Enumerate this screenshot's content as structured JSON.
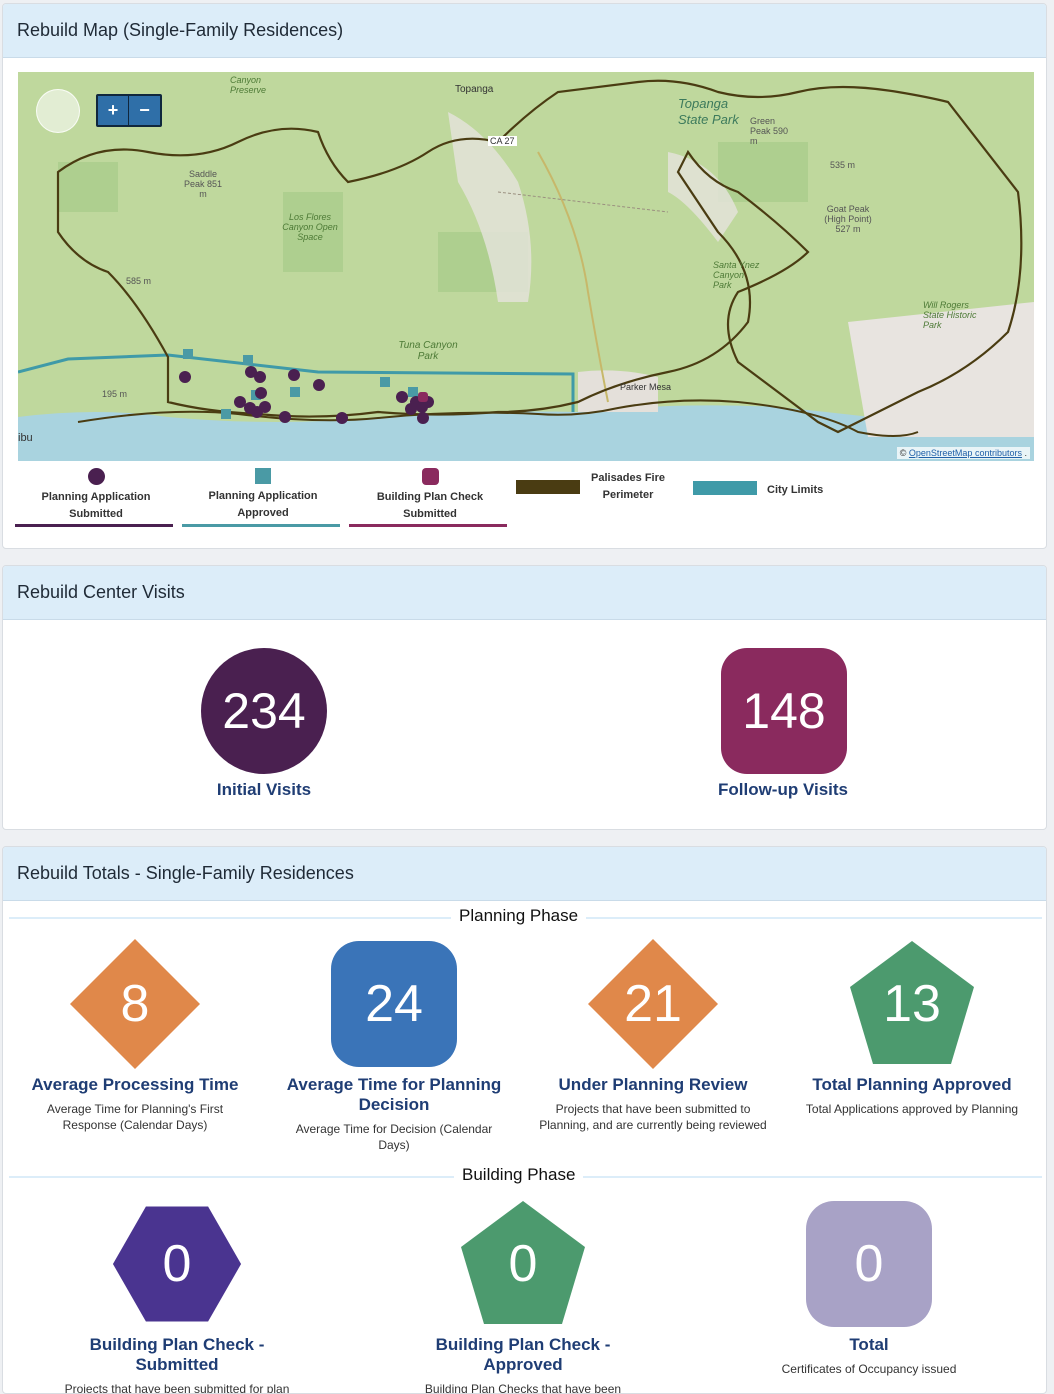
{
  "map_panel": {
    "title": "Rebuild Map (Single-Family Residences)",
    "zoom_in": "+",
    "zoom_out": "−",
    "attribution_symbol": "©",
    "attribution_link": "OpenStreetMap contributors",
    "attribution_suffix": ".",
    "labels": {
      "topanga": "Topanga",
      "topanga_state_park": "Topanga State Park",
      "tuna_canyon": "Tuna Canyon Park",
      "los_flores": "Los Flores Canyon Open Space",
      "saddle_peak": "Saddle Peak 851 m",
      "green_peak": "Green Peak 590 m",
      "goat_peak": "Goat Peak (High Point) 527 m",
      "peak_535": "535 m",
      "peak_585": "585 m",
      "peak_195": "195 m",
      "santa_ynez": "Santa Ynez Canyon Park",
      "will_rogers": "Will Rogers State Historic Park",
      "parker": "Parker Mesa",
      "canyon_preserve": "Canyon Preserve",
      "ca27": "CA 27",
      "malibu_edge": "ibu"
    },
    "legend": [
      {
        "label": "Planning Application Submitted",
        "color": "#4a2050"
      },
      {
        "label": "Planning Application Approved",
        "color": "#4a9aa5"
      },
      {
        "label": "Building Plan Check Submitted",
        "color": "#8a2a5e"
      },
      {
        "label": "Palisades Fire Perimeter",
        "color": "#4a3c12"
      },
      {
        "label": "City Limits",
        "color": "#3f9aa8"
      }
    ]
  },
  "visits_panel": {
    "title": "Rebuild Center Visits",
    "initial": {
      "value": "234",
      "label": "Initial Visits",
      "color": "#4a2050"
    },
    "followup": {
      "value": "148",
      "label": "Follow-up Visits",
      "color": "#8a2a5e"
    }
  },
  "totals_panel": {
    "title": "Rebuild Totals - Single-Family Residences",
    "planning_phase": "Planning Phase",
    "building_phase": "Building Phase",
    "planning": [
      {
        "value": "8",
        "title": "Average Processing Time",
        "desc": "Average Time for Planning's First Response (Calendar Days)",
        "shape": "diamond",
        "color": "#e0884a"
      },
      {
        "value": "24",
        "title": "Average Time for Planning Decision",
        "desc": "Average Time for Decision (Calendar Days)",
        "shape": "rounded",
        "color": "#3a74b8"
      },
      {
        "value": "21",
        "title": "Under Planning Review",
        "desc": "Projects that have been submitted to Planning, and are currently being reviewed",
        "shape": "diamond",
        "color": "#e0884a"
      },
      {
        "value": "13",
        "title": "Total Planning Approved",
        "desc": "Total Applications approved by Planning",
        "shape": "pentagon",
        "color": "#4c9a6e"
      }
    ],
    "building": [
      {
        "value": "0",
        "title": "Building Plan Check - Submitted",
        "desc": "Projects that have been submitted for plan check, and are currently being reviewed by all City departments",
        "shape": "hexagon",
        "color": "#4a3490"
      },
      {
        "value": "0",
        "title": "Building Plan Check - Approved",
        "desc": "Building Plan Checks that have been approved",
        "shape": "pentagon",
        "color": "#4c9a6e"
      },
      {
        "value": "0",
        "title": "Total",
        "desc": "Certificates of Occupancy issued",
        "shape": "rounded",
        "color": "#a8a2c6"
      }
    ]
  }
}
